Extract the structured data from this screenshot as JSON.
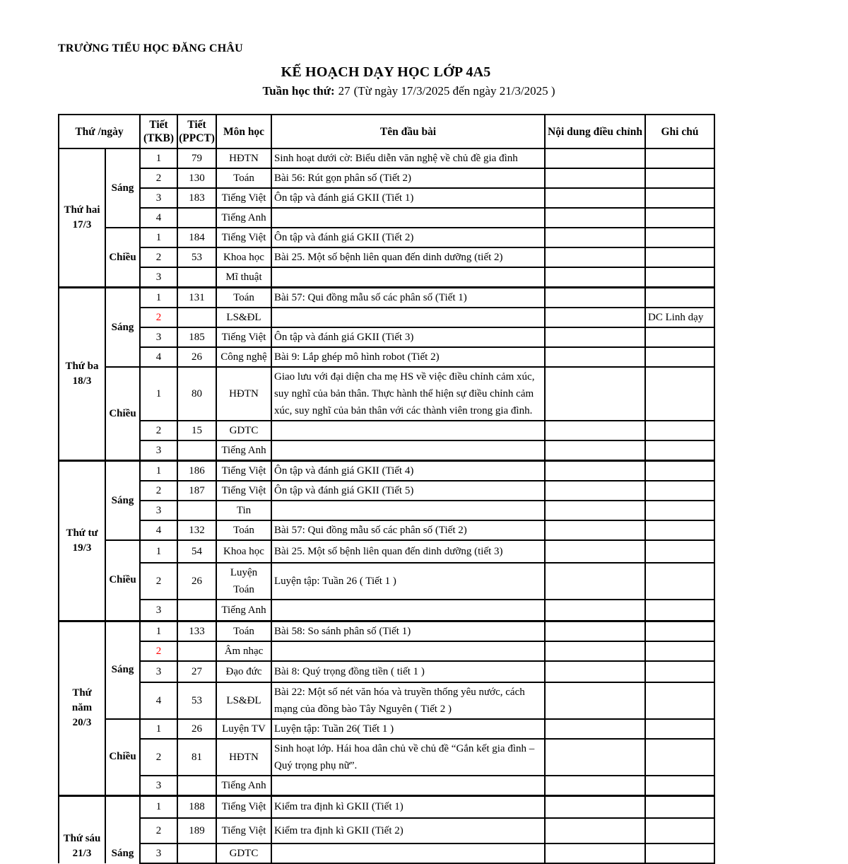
{
  "page": {
    "school": "TRƯỜNG TIỂU HỌC ĐĂNG CHÂU",
    "title": "KẾ HOẠCH DẠY HỌC LỚP 4A5",
    "week_label": "Tuần học thứ:",
    "week_number": "27",
    "date_range": "(Từ ngày 17/3/2025 đến ngày 21/3/2025 )"
  },
  "colors": {
    "highlight": "#ff0000",
    "text": "#000000",
    "border": "#000000"
  },
  "table": {
    "columns": [
      {
        "label": "Thứ /ngày",
        "sub": ""
      },
      {
        "label": "Tiết",
        "sub": "(TKB)"
      },
      {
        "label": "Tiết",
        "sub": "(PPCT)"
      },
      {
        "label": "Môn học",
        "sub": ""
      },
      {
        "label": "Tên đầu bài",
        "sub": ""
      },
      {
        "label": "Nội dung điều chỉnh",
        "sub": ""
      },
      {
        "label": "Ghi chú",
        "sub": ""
      }
    ],
    "days": [
      {
        "day": "Thứ hai",
        "date": "17/3",
        "sessions": [
          {
            "name": "Sáng",
            "rows": [
              {
                "tkb": "1",
                "ppct": "79",
                "subject": "HĐTN",
                "title": "Sinh hoạt dưới cờ: Biểu diễn văn nghệ về chủ đề gia đình",
                "adjust": "",
                "note": ""
              },
              {
                "tkb": "2",
                "ppct": "130",
                "subject": "Toán",
                "title": "Bài 56: Rút gọn phân số (Tiết 2)",
                "adjust": "",
                "note": ""
              },
              {
                "tkb": "3",
                "ppct": "183",
                "subject": "Tiếng Việt",
                "title": "Ôn tập và đánh giá GKII (Tiết 1)",
                "adjust": "",
                "note": ""
              },
              {
                "tkb": "4",
                "ppct": "",
                "subject": "Tiếng Anh",
                "title": "",
                "adjust": "",
                "note": ""
              }
            ]
          },
          {
            "name": "Chiều",
            "rows": [
              {
                "tkb": "1",
                "ppct": "184",
                "subject": "Tiếng Việt",
                "title": "Ôn tập và đánh giá GKII (Tiết 2)",
                "adjust": "",
                "note": ""
              },
              {
                "tkb": "2",
                "ppct": "53",
                "subject": "Khoa học",
                "title": "Bài 25.  Một số bệnh liên quan đến dinh dưỡng (tiết 2)",
                "adjust": "",
                "note": ""
              },
              {
                "tkb": "3",
                "ppct": "",
                "subject": "Mĩ thuật",
                "title": "",
                "adjust": "",
                "note": ""
              }
            ]
          }
        ]
      },
      {
        "day": "Thứ ba",
        "date": "18/3",
        "sessions": [
          {
            "name": "Sáng",
            "rows": [
              {
                "tkb": "1",
                "ppct": "131",
                "subject": "Toán",
                "title": "Bài 57: Qui đồng mẫu số các phân số (Tiết 1)",
                "adjust": "",
                "note": ""
              },
              {
                "tkb": "2",
                "highlight": true,
                "ppct": "",
                "subject": "LS&ĐL",
                "title": "",
                "adjust": "",
                "note": "DC Linh dạy"
              },
              {
                "tkb": "3",
                "ppct": "185",
                "subject": "Tiếng Việt",
                "title": "Ôn tập và đánh giá GKII (Tiết 3)",
                "adjust": "",
                "note": ""
              },
              {
                "tkb": "4",
                "ppct": "26",
                "subject": "Công nghệ",
                "title": "Bài 9: Lắp ghép mô hình robot (Tiết 2)",
                "adjust": "",
                "note": ""
              }
            ]
          },
          {
            "name": "Chiều",
            "rows": [
              {
                "tkb": "1",
                "ppct": "80",
                "subject": "HĐTN",
                "title": "Giao lưu với đại diện cha mẹ HS về việc điều chỉnh cảm xúc, suy nghĩ của bản thân.  Thực hành thể hiện sự điều chỉnh cảm xúc, suy nghĩ của bản thân với các thành viên trong gia đình.",
                "adjust": "",
                "note": ""
              },
              {
                "tkb": "2",
                "ppct": "15",
                "subject": "GDTC",
                "title": "",
                "adjust": "",
                "note": ""
              },
              {
                "tkb": "3",
                "ppct": "",
                "subject": "Tiếng Anh",
                "title": "",
                "adjust": "",
                "note": ""
              }
            ]
          }
        ]
      },
      {
        "day": "Thứ tư",
        "date": "19/3",
        "sessions": [
          {
            "name": "Sáng",
            "rows": [
              {
                "tkb": "1",
                "ppct": "186",
                "subject": "Tiếng Việt",
                "title": "Ôn tập và đánh giá GKII (Tiết 4)",
                "adjust": "",
                "note": ""
              },
              {
                "tkb": "2",
                "ppct": "187",
                "subject": "Tiếng Việt",
                "title": "Ôn tập và đánh giá GKII (Tiết 5)",
                "adjust": "",
                "note": ""
              },
              {
                "tkb": "3",
                "ppct": "",
                "subject": "Tin",
                "title": "",
                "adjust": "",
                "note": ""
              },
              {
                "tkb": "4",
                "ppct": "132",
                "subject": "Toán",
                "title": "Bài 57: Qui đồng mẫu số các phân số  (Tiết 2)",
                "adjust": "",
                "note": ""
              }
            ]
          },
          {
            "name": "Chiều",
            "rows": [
              {
                "tkb": "1",
                "ppct": "54",
                "subject": "Khoa học",
                "title": "Bài 25.  Một số bệnh liên quan đến dinh dưỡng  (tiết 3)",
                "adjust": "",
                "note": ""
              },
              {
                "tkb": "2",
                "ppct": "26",
                "subject": "Luyện Toán",
                "title": "Luyện tập: Tuần 26 ( Tiết 1 )",
                "adjust": "",
                "note": ""
              },
              {
                "tkb": "3",
                "ppct": "",
                "subject": "Tiếng Anh",
                "title": "",
                "adjust": "",
                "note": ""
              }
            ]
          }
        ]
      },
      {
        "day": "Thứ năm",
        "date": "20/3",
        "sessions": [
          {
            "name": "Sáng",
            "rows": [
              {
                "tkb": "1",
                "ppct": "133",
                "subject": "Toán",
                "title": "Bài 58: So sánh phân số  (Tiết 1)",
                "adjust": "",
                "note": ""
              },
              {
                "tkb": "2",
                "highlight": true,
                "ppct": "",
                "subject": "Âm nhạc",
                "title": "",
                "adjust": "",
                "note": ""
              },
              {
                "tkb": "3",
                "ppct": "27",
                "subject": "Đạo đức",
                "title": "Bài 8: Quý trọng đồng tiền (  tiết 1 )",
                "adjust": "",
                "note": ""
              },
              {
                "tkb": "4",
                "ppct": "53",
                "subject": "LS&ĐL",
                "title": "Bài 22: Một số nét văn hóa và truyền thống yêu nước, cách mạng của đồng bào Tây Nguyên ( Tiết 2 )",
                "adjust": "",
                "note": ""
              }
            ]
          },
          {
            "name": "Chiều",
            "rows": [
              {
                "tkb": "1",
                "ppct": "26",
                "subject": "Luyện TV",
                "title": "Luyện tập: Tuần 26( Tiết 1 )",
                "adjust": "",
                "note": ""
              },
              {
                "tkb": "2",
                "ppct": "81",
                "subject": "HĐTN",
                "title": "Sinh hoạt lớp. Hái hoa dân chủ về chủ đề “Gắn kết gia đình – Quý trọng phụ nữ”.",
                "adjust": "",
                "note": ""
              },
              {
                "tkb": "3",
                "ppct": "",
                "subject": "Tiếng Anh",
                "title": "",
                "adjust": "",
                "note": ""
              }
            ]
          }
        ]
      },
      {
        "day": "Thứ sáu",
        "date": "21/3",
        "sessions": [
          {
            "name": "Sáng",
            "rows": [
              {
                "tkb": "1",
                "ppct": "188",
                "subject": "Tiếng Việt",
                "title": "Kiểm tra định kì GKII (Tiết 1)",
                "adjust": "",
                "note": ""
              },
              {
                "tkb": "2",
                "ppct": "189",
                "subject": "Tiếng Việt",
                "title": "Kiểm tra định kì GKII (Tiết 2)",
                "adjust": "",
                "note": ""
              },
              {
                "tkb": "3",
                "ppct": "",
                "subject": "GDTC",
                "title": "",
                "adjust": "",
                "note": ""
              }
            ]
          }
        ]
      }
    ]
  }
}
